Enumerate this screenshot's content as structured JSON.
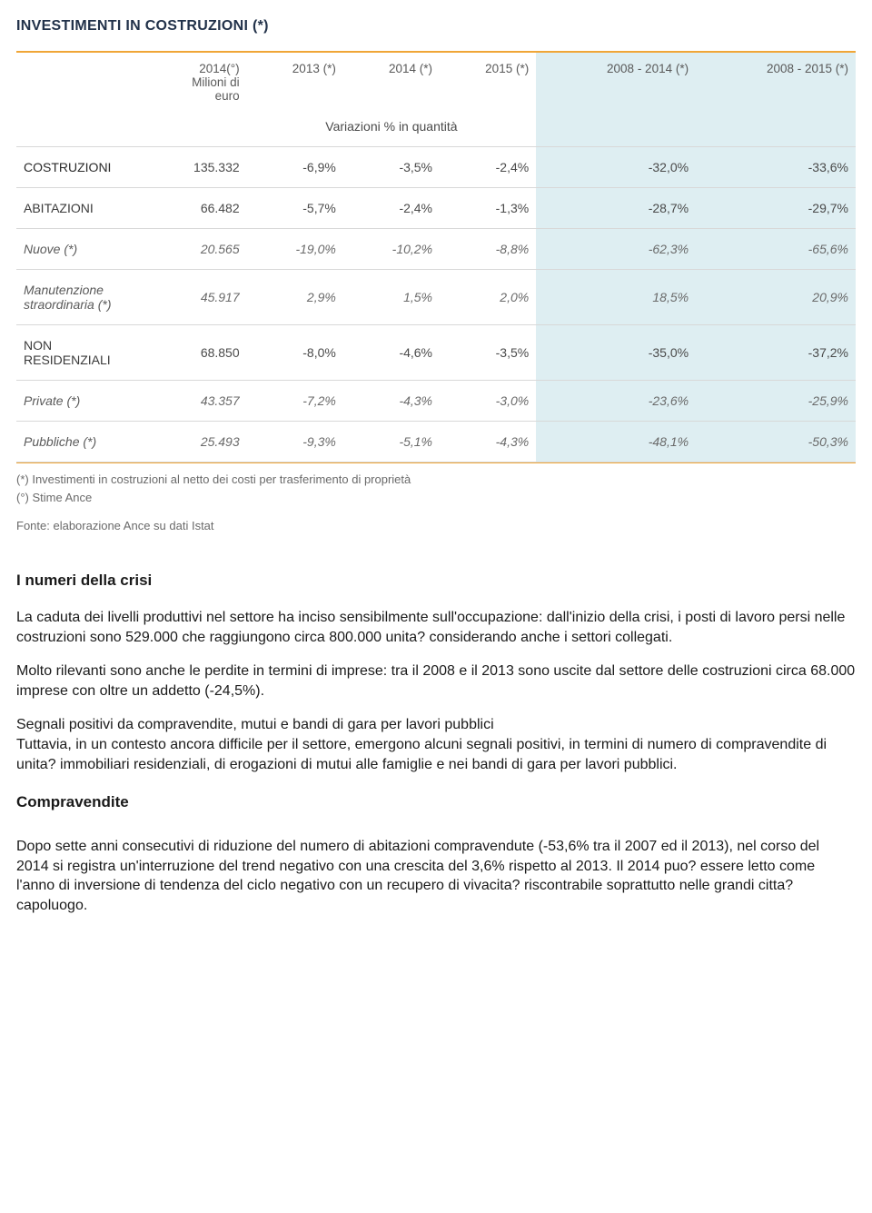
{
  "table": {
    "title": "INVESTIMENTI IN COSTRUZIONI (*)",
    "header": {
      "col1_line1": "2014(°)",
      "col1_line2": "Milioni di",
      "col1_line3": "euro",
      "years": [
        "2013 (*)",
        "2014 (*)",
        "2015 (*)",
        "2008 - 2014 (*)",
        "2008 - 2015 (*)"
      ],
      "subheader": "Variazioni % in quantità"
    },
    "highlight_bg": "#deeef2",
    "rule_color": "#f0a637",
    "border_color": "#d8d8d8",
    "rows": [
      {
        "name": "COSTRUZIONI",
        "style": "bold",
        "vals": [
          "135.332",
          "-6,9%",
          "-3,5%",
          "-2,4%",
          "-32,0%",
          "-33,6%"
        ]
      },
      {
        "name": "ABITAZIONI",
        "style": "normal",
        "vals": [
          "66.482",
          "-5,7%",
          "-2,4%",
          "-1,3%",
          "-28,7%",
          "-29,7%"
        ]
      },
      {
        "name": "Nuove (*)",
        "style": "italic",
        "vals": [
          "20.565",
          "-19,0%",
          "-10,2%",
          "-8,8%",
          "-62,3%",
          "-65,6%"
        ]
      },
      {
        "name": "Manutenzione straordinaria (*)",
        "style": "italic",
        "vals": [
          "45.917",
          "2,9%",
          "1,5%",
          "2,0%",
          "18,5%",
          "20,9%"
        ]
      },
      {
        "name": "NON RESIDENZIALI",
        "style": "normal",
        "vals": [
          "68.850",
          "-8,0%",
          "-4,6%",
          "-3,5%",
          "-35,0%",
          "-37,2%"
        ]
      },
      {
        "name": "Private (*)",
        "style": "italic",
        "vals": [
          "43.357",
          "-7,2%",
          "-4,3%",
          "-3,0%",
          "-23,6%",
          "-25,9%"
        ]
      },
      {
        "name": "Pubbliche (*)",
        "style": "italic",
        "vals": [
          "25.493",
          "-9,3%",
          "-5,1%",
          "-4,3%",
          "-48,1%",
          "-50,3%"
        ]
      }
    ],
    "footnotes": [
      "(*) Investimenti in costruzioni al netto dei costi per trasferimento di proprietà",
      "(°) Stime Ance"
    ],
    "source": "Fonte: elaborazione Ance su dati Istat"
  },
  "body": {
    "h1": "I numeri della crisi",
    "p1": " La caduta dei livelli produttivi nel settore ha inciso sensibilmente sull'occupazione: dall'inizio della crisi, i posti di lavoro persi nelle costruzioni sono 529.000 che raggiungono circa 800.000 unita? considerando anche i settori collegati.",
    "p2": "Molto rilevanti sono anche le perdite in termini di imprese: tra il 2008 e il 2013 sono uscite dal settore delle costruzioni circa 68.000 imprese con oltre un addetto (-24,5%).",
    "p3": "Segnali positivi da compravendite, mutui e bandi di gara per lavori pubblici",
    "p4": "Tuttavia, in un contesto ancora difficile per il settore, emergono alcuni segnali positivi, in termini di numero di compravendite di unita? immobiliari residenziali, di erogazioni di mutui alle famiglie e nei bandi di gara per lavori pubblici.",
    "h2": "Compravendite",
    "p5": "Dopo sette anni consecutivi di riduzione del numero di abitazioni compravendute (-53,6% tra il 2007 ed il 2013), nel corso del 2014 si registra un'interruzione del trend negativo con una crescita del 3,6% rispetto al 2013.  Il 2014 puo? essere letto come l'anno di inversione di tendenza del ciclo negativo con un recupero di vivacita? riscontrabile soprattutto nelle grandi citta? capoluogo."
  }
}
